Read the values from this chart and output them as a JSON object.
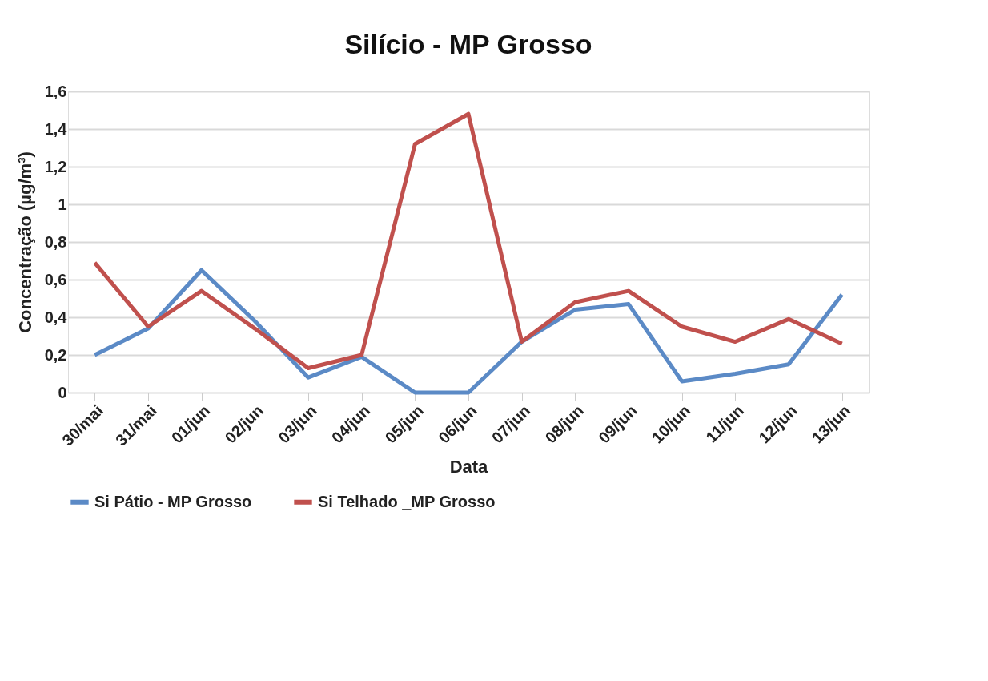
{
  "chart_data": {
    "type": "line",
    "title": "Silício - MP Grosso",
    "xlabel": "Data",
    "ylabel": "Concentração (µg/m³)",
    "categories": [
      "30/mai",
      "31/mai",
      "01/jun",
      "02/jun",
      "03/jun",
      "04/jun",
      "05/jun",
      "06/jun",
      "07/jun",
      "08/jun",
      "09/jun",
      "10/jun",
      "11/jun",
      "12/jun",
      "13/jun"
    ],
    "series": [
      {
        "name": "Si Pátio - MP Grosso",
        "color": "#5b8ac6",
        "values": [
          0.2,
          0.34,
          0.65,
          0.38,
          0.08,
          0.19,
          0,
          0,
          0.27,
          0.44,
          0.47,
          0.06,
          0.1,
          0.15,
          0.52
        ]
      },
      {
        "name": "Si Telhado _MP Grosso",
        "color": "#c0504d",
        "values": [
          0.69,
          0.35,
          0.54,
          0.34,
          0.13,
          0.2,
          1.32,
          1.48,
          0.27,
          0.48,
          0.54,
          0.35,
          0.27,
          0.39,
          0.26
        ]
      }
    ],
    "ylim": [
      0,
      1.6
    ],
    "yticks": [
      0,
      {
        "value": 0.2,
        "label": "0,2"
      },
      {
        "value": 0.4,
        "label": "0,4"
      },
      {
        "value": 0.6,
        "label": "0,6"
      },
      {
        "value": 0.8,
        "label": "0,8"
      },
      1,
      {
        "value": 1.2,
        "label": "1,2"
      },
      {
        "value": 1.4,
        "label": "1,4"
      },
      {
        "value": 1.6,
        "label": "1,6"
      }
    ],
    "grid": "y",
    "legend": "bottom",
    "marker": "none",
    "line_style": "solid"
  }
}
